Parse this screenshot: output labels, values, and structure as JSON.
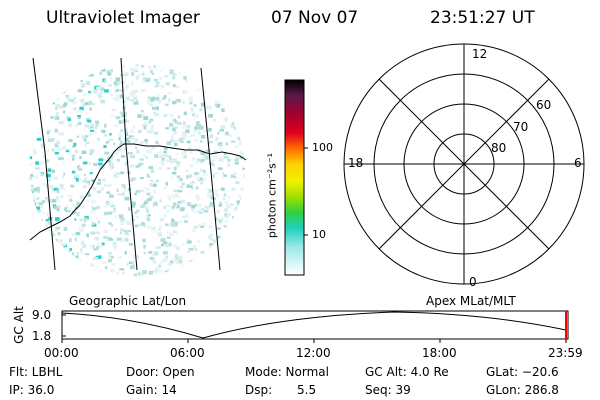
{
  "header": {
    "instrument": "Ultraviolet Imager",
    "date": "07 Nov 07",
    "time": "23:51:27 UT"
  },
  "colorbar": {
    "unit_label": "photon cm⁻²s⁻¹",
    "ticks": [
      "100",
      "10"
    ]
  },
  "polar_plot": {
    "mlt_labels": [
      "12",
      "18",
      "6",
      "0"
    ],
    "lat_labels": [
      "60",
      "70",
      "80"
    ]
  },
  "projection_labels": {
    "left": "Geographic Lat/Lon",
    "right": "Apex  MLat/MLT"
  },
  "altitude_plot": {
    "axis_label": "GC Alt",
    "y_ticks": [
      "9.0",
      "1.8"
    ],
    "x_ticks": [
      "00:00",
      "06:00",
      "12:00",
      "18:00",
      "23:59"
    ]
  },
  "info": {
    "row1": {
      "flt": "Flt: LBHL",
      "door": "Door: Open",
      "mode": "Mode: Normal",
      "gc_alt": "GC Alt: 4.0 Re",
      "glat": "GLat: −20.6"
    },
    "row2": {
      "ip": "IP: 36.0",
      "gain": "Gain: 14",
      "dsp_label": "Dsp:",
      "dsp_value": "5.5",
      "seq": "Seq: 39",
      "glon": "GLon: 286.8"
    }
  },
  "colors": {
    "noise_teal": "#66cccc",
    "noise_cyan": "#33cccc",
    "line": "#000000",
    "current_marker": "#ff0000"
  }
}
